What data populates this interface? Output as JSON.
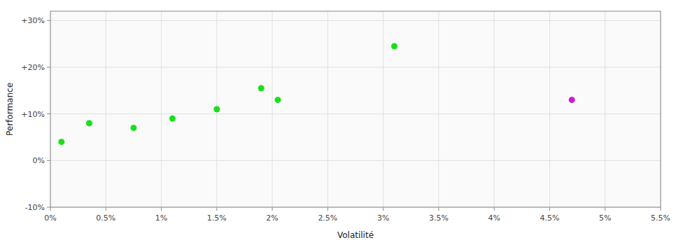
{
  "chart_data": {
    "type": "scatter",
    "xlabel": "Volatilité",
    "ylabel": "Performance",
    "series": [
      {
        "color": "#00dd00",
        "x": [
          0.001,
          0.0035,
          0.0075,
          0.011,
          0.015,
          0.019,
          0.0205,
          0.031
        ],
        "values": [
          0.04,
          0.08,
          0.07,
          0.09,
          0.11,
          0.155,
          0.13,
          0.245
        ]
      },
      {
        "color": "#cc00cc",
        "x": [
          0.047
        ],
        "values": [
          0.13
        ]
      }
    ],
    "xlim": [
      0.0,
      0.055
    ],
    "ylim": [
      -0.1,
      0.32
    ],
    "xticks": [
      {
        "value": 0.0,
        "label": "0%"
      },
      {
        "value": 0.005,
        "label": "0.5%"
      },
      {
        "value": 0.01,
        "label": "1%"
      },
      {
        "value": 0.015,
        "label": "1.5%"
      },
      {
        "value": 0.02,
        "label": "2%"
      },
      {
        "value": 0.025,
        "label": "2.5%"
      },
      {
        "value": 0.03,
        "label": "3%"
      },
      {
        "value": 0.035,
        "label": "3.5%"
      },
      {
        "value": 0.04,
        "label": "4%"
      },
      {
        "value": 0.045,
        "label": "4.5%"
      },
      {
        "value": 0.05,
        "label": "5%"
      },
      {
        "value": 0.055,
        "label": "5.5%"
      }
    ],
    "yticks": [
      {
        "value": -0.1,
        "label": "-10%"
      },
      {
        "value": 0.0,
        "label": "0%"
      },
      {
        "value": 0.1,
        "label": "+10%"
      },
      {
        "value": 0.2,
        "label": "+20%"
      },
      {
        "value": 0.3,
        "label": "+30%"
      }
    ],
    "grid": true
  }
}
